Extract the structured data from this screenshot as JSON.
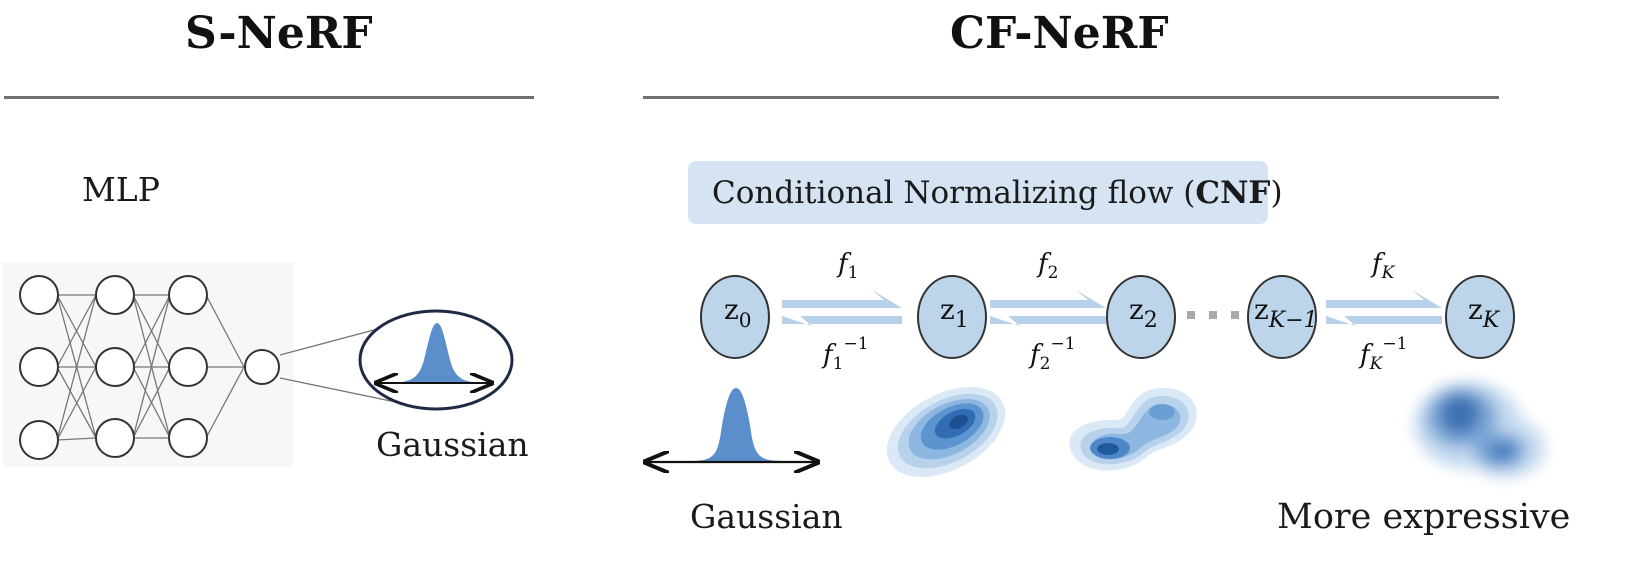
{
  "left_panel": {
    "title": "S-NeRF",
    "network_label": "MLP",
    "output_label": "Gaussian"
  },
  "right_panel": {
    "title": "CF-NeRF",
    "cnf_prefix": "Conditional Normalizing flow (",
    "cnf_bold": "CNF",
    "cnf_suffix": ")",
    "base_label": "Gaussian",
    "result_label": "More expressive",
    "nodes": [
      {
        "var": "z",
        "sub": "0"
      },
      {
        "var": "z",
        "sub": "1"
      },
      {
        "var": "z",
        "sub": "2"
      },
      {
        "var": "z",
        "sub": "K−1"
      },
      {
        "var": "z",
        "sub": "K"
      }
    ],
    "transforms": [
      {
        "forward": "f",
        "forward_sub": "1",
        "inverse": "f",
        "inverse_sub": "1",
        "inverse_sup": "−1"
      },
      {
        "forward": "f",
        "forward_sub": "2",
        "inverse": "f",
        "inverse_sub": "2",
        "inverse_sup": "−1"
      },
      {
        "forward": "f",
        "forward_sub": "K",
        "inverse": "f",
        "inverse_sub": "K",
        "inverse_sup": "−1"
      }
    ]
  },
  "colors": {
    "node_fill": "#bcd5ea",
    "node_stroke": "#333333",
    "arrow_fill": "#b8d1ea",
    "gaussian_fill": "#5b8fcc",
    "cnf_box": "#d6e3f2",
    "rule": "#707070",
    "dots": "#aaaaaa"
  }
}
